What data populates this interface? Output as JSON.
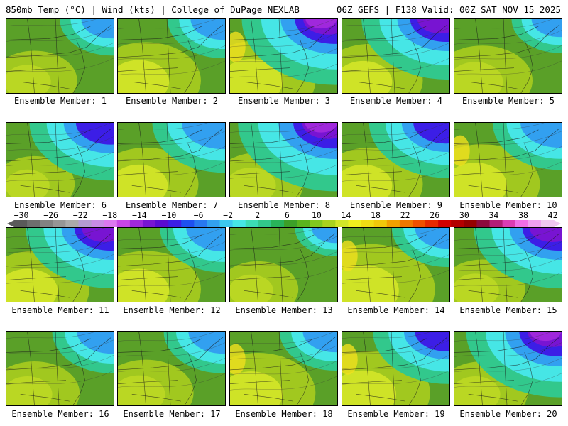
{
  "header": {
    "left_text": "850mb Temp (°C) | Wind (kts) | College of DuPage NEXLAB",
    "right_text": "06Z GEFS | F138 Valid: 00Z SAT NOV 15 2025"
  },
  "members": [
    {
      "label": "Ensemble Member: 1",
      "cold_level": 0.35,
      "warm_level": 0.3
    },
    {
      "label": "Ensemble Member: 2",
      "cold_level": 0.4,
      "warm_level": 0.55
    },
    {
      "label": "Ensemble Member: 3",
      "cold_level": 0.9,
      "warm_level": 0.6
    },
    {
      "label": "Ensemble Member: 4",
      "cold_level": 0.8,
      "warm_level": 0.5
    },
    {
      "label": "Ensemble Member: 5",
      "cold_level": 0.3,
      "warm_level": 0.45
    },
    {
      "label": "Ensemble Member: 6",
      "cold_level": 0.75,
      "warm_level": 0.25
    },
    {
      "label": "Ensemble Member: 7",
      "cold_level": 0.6,
      "warm_level": 0.5
    },
    {
      "label": "Ensemble Member: 8",
      "cold_level": 0.95,
      "warm_level": 0.35
    },
    {
      "label": "Ensemble Member: 9",
      "cold_level": 0.7,
      "warm_level": 0.5
    },
    {
      "label": "Ensemble Member: 10",
      "cold_level": 0.55,
      "warm_level": 0.6
    },
    {
      "label": "Ensemble Member: 11",
      "cold_level": 0.8,
      "warm_level": 0.55
    },
    {
      "label": "Ensemble Member: 12",
      "cold_level": 0.5,
      "warm_level": 0.55
    },
    {
      "label": "Ensemble Member: 13",
      "cold_level": 0.2,
      "warm_level": 0.25
    },
    {
      "label": "Ensemble Member: 14",
      "cold_level": 0.4,
      "warm_level": 0.75
    },
    {
      "label": "Ensemble Member: 15",
      "cold_level": 0.8,
      "warm_level": 0.3
    },
    {
      "label": "Ensemble Member: 16",
      "cold_level": 0.45,
      "warm_level": 0.35
    },
    {
      "label": "Ensemble Member: 17",
      "cold_level": 0.45,
      "warm_level": 0.4
    },
    {
      "label": "Ensemble Member: 18",
      "cold_level": 0.4,
      "warm_level": 0.6
    },
    {
      "label": "Ensemble Member: 19",
      "cold_level": 0.65,
      "warm_level": 0.65
    },
    {
      "label": "Ensemble Member: 20",
      "cold_level": 0.9,
      "warm_level": 0.35
    }
  ],
  "colorbar": {
    "labels": [
      "−30",
      "−26",
      "−22",
      "−18",
      "−14",
      "−10",
      "−6",
      "−2",
      "2",
      "6",
      "10",
      "14",
      "18",
      "22",
      "26",
      "30",
      "34",
      "38",
      "42"
    ],
    "colors": [
      "#5a5a5a",
      "#6e6e6e",
      "#828282",
      "#969696",
      "#aaaaaa",
      "#b49bd2",
      "#c88ce6",
      "#dc78f0",
      "#c846e6",
      "#a028dc",
      "#7814d2",
      "#5a0ad2",
      "#3c1ee6",
      "#1e50f0",
      "#2878f0",
      "#32a0f0",
      "#3cc8f0",
      "#46e6e6",
      "#3cdcb4",
      "#32c88c",
      "#28b45a",
      "#3ca028",
      "#5ab41e",
      "#82c81e",
      "#aad21e",
      "#d2e628",
      "#f0f01e",
      "#f0dc14",
      "#f0c80a",
      "#f0a000",
      "#f07800",
      "#f05000",
      "#e62800",
      "#d20000",
      "#b40000",
      "#960000",
      "#8c0a3c",
      "#b41e78",
      "#dc3cb4",
      "#f06ee6",
      "#f0a0f0",
      "#f0c8f0"
    ]
  }
}
